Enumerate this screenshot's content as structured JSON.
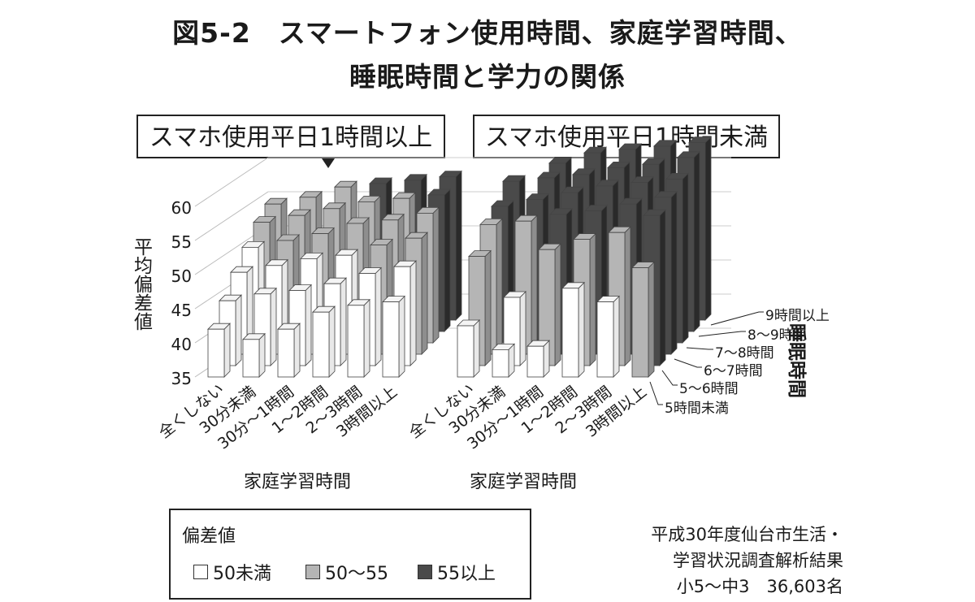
{
  "title": {
    "line1": "図5-2　スマートフォン使用時間、家庭学習時間、",
    "line2": "睡眠時間と学力の関係"
  },
  "colors": {
    "below_50": "#ffffff",
    "50_55": "#b5b5b5",
    "above_55": "#4a4a4a",
    "below_50_side": "#e8e8e8",
    "50_55_side": "#8e8e8e",
    "above_55_side": "#2a2a2a"
  },
  "chart_data": {
    "type": "bar",
    "subtype": "3d-bar",
    "panels": [
      {
        "label": "スマホ使用平日1時間以上",
        "xlabel": "家庭学習時間"
      },
      {
        "label": "スマホ使用平日1時間未満",
        "xlabel": "家庭学習時間"
      }
    ],
    "categories": [
      "全くしない",
      "30分未満",
      "30分～1時間",
      "1～2時間",
      "2～3時間",
      "3時間以上"
    ],
    "depth_categories": [
      "5時間未満",
      "5～6時間",
      "6～7時間",
      "7～8時間",
      "8～9時間",
      "9時間以上"
    ],
    "depth_label": "睡眠時間",
    "ylabel": "平均偏差値",
    "yticks": [
      35,
      40,
      45,
      50,
      55,
      60
    ],
    "ylim": [
      35,
      60
    ],
    "series": [
      {
        "panel": 0,
        "values": [
          [
            42,
            40.5,
            42,
            44.5,
            45.5,
            46
          ],
          [
            44.5,
            45.5,
            46,
            47,
            48.5,
            49.5
          ],
          [
            47,
            48,
            49,
            49.5,
            51,
            52
          ],
          [
            49,
            50,
            51,
            52.5,
            53,
            54
          ],
          [
            51,
            52,
            53,
            54,
            54.5,
            55
          ],
          [
            52,
            53,
            54.5,
            55,
            55.5,
            56
          ]
        ]
      },
      {
        "panel": 1,
        "values": [
          [
            42.5,
            39,
            39.5,
            48,
            46,
            51
          ],
          [
            51,
            45,
            52,
            53.5,
            54.5,
            57
          ],
          [
            54,
            54.5,
            55.5,
            56,
            57,
            58
          ],
          [
            55,
            56,
            57,
            58,
            58.5,
            59
          ],
          [
            57,
            57.5,
            58,
            59,
            59.5,
            60.5
          ],
          [
            49,
            58,
            59.5,
            60,
            60.5,
            61
          ]
        ]
      }
    ],
    "legend_title": "偏差値",
    "legend": [
      "50未満",
      "50～55",
      "55以上"
    ]
  },
  "source": {
    "line1": "平成30年度仙台市生活・",
    "line2": "学習状況調査解析結果",
    "line3": "小5～中3　36,603名"
  }
}
